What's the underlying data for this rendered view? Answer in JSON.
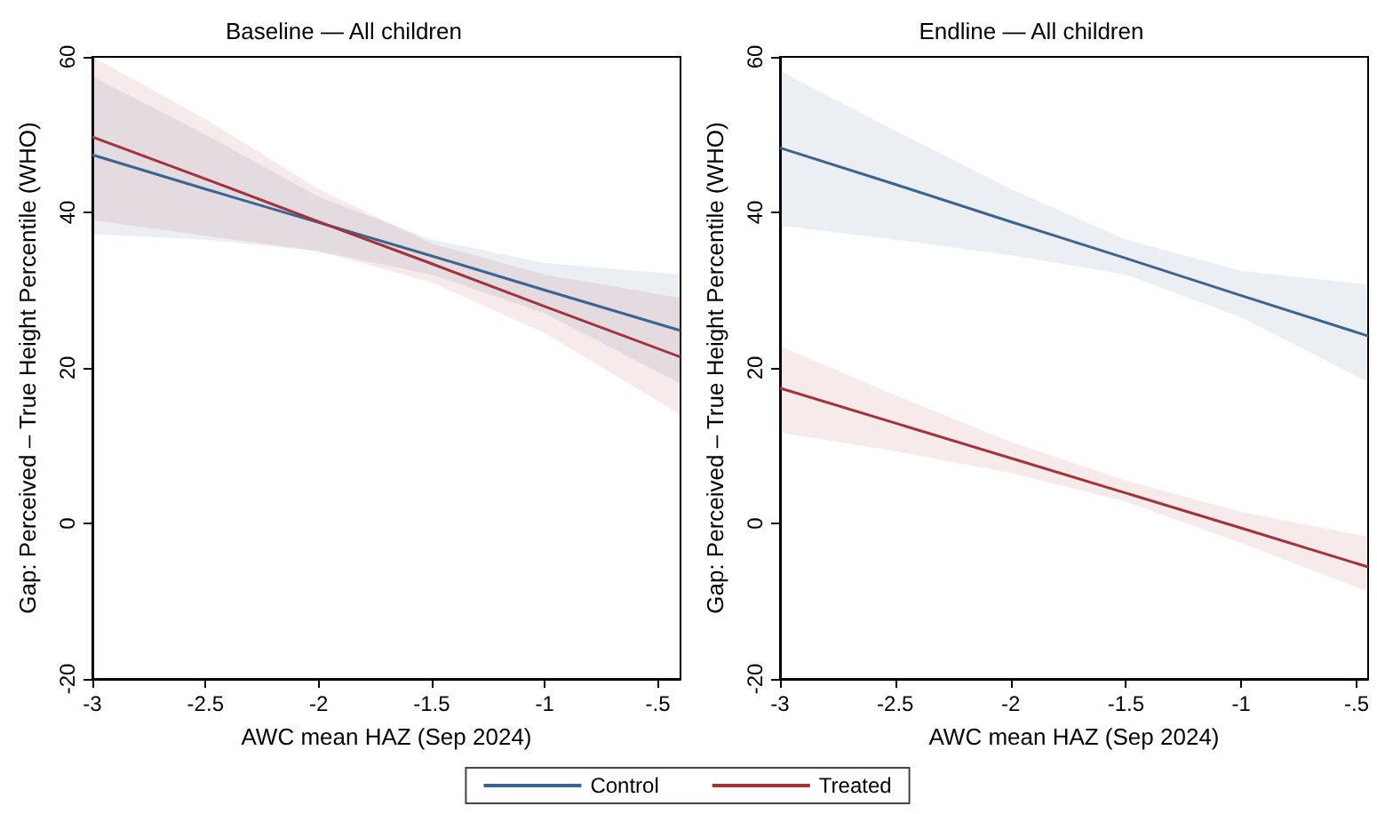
{
  "chart_data": [
    {
      "type": "line",
      "title": "Baseline — All children",
      "xlabel": "AWC mean HAZ (Sep 2024)",
      "ylabel": "Gap: Perceived – True Height Percentile (WHO)",
      "x": [
        -3,
        -2.5,
        -2,
        -1.5,
        -1,
        -0.4
      ],
      "xlim": [
        -3,
        -0.4
      ],
      "xticks": [
        -3,
        -2.5,
        -2,
        -1.5,
        -1,
        {
          "value": -0.5,
          "label": "-.5"
        }
      ],
      "ylim": [
        -20,
        60
      ],
      "yticks": [
        -20,
        0,
        20,
        40,
        60
      ],
      "grid": false,
      "legend": "bottom",
      "series": [
        {
          "name": "Control",
          "color": "#3b6590",
          "values": [
            47.4,
            43.0,
            38.7,
            34.4,
            30.0,
            24.8
          ],
          "lower": [
            37.2,
            36.5,
            35,
            32,
            27,
            18
          ],
          "upper": [
            57.5,
            50,
            42,
            36.5,
            33.5,
            32
          ]
        },
        {
          "name": "Treated",
          "color": "#a3323c",
          "values": [
            49.7,
            44.3,
            38.8,
            33.4,
            27.9,
            21.4
          ],
          "lower": [
            39,
            37,
            35,
            31,
            24.5,
            14
          ],
          "upper": [
            60,
            52,
            43,
            36,
            32,
            29
          ]
        }
      ]
    },
    {
      "type": "line",
      "title": "Endline — All children",
      "xlabel": "AWC mean HAZ (Sep 2024)",
      "ylabel": "Gap: Perceived – True Height Percentile (WHO)",
      "x": [
        -3,
        -2.5,
        -2,
        -1.5,
        -1,
        -0.45
      ],
      "xlim": [
        -3,
        -0.45
      ],
      "xticks": [
        -3,
        -2.5,
        -2,
        -1.5,
        -1,
        {
          "value": -0.5,
          "label": "-.5"
        }
      ],
      "ylim": [
        -20,
        60
      ],
      "yticks": [
        -20,
        0,
        20,
        40,
        60
      ],
      "grid": false,
      "legend": "bottom",
      "series": [
        {
          "name": "Control",
          "color": "#3b6590",
          "values": [
            48.3,
            43.6,
            38.8,
            34.1,
            29.3,
            24.1
          ],
          "lower": [
            38.3,
            36.5,
            34.5,
            32,
            26.5,
            18.2
          ],
          "upper": [
            58.2,
            50.5,
            43,
            36.5,
            32.5,
            30.7
          ]
        },
        {
          "name": "Treated",
          "color": "#a3323c",
          "values": [
            17.4,
            12.9,
            8.4,
            3.9,
            -0.6,
            -5.6
          ],
          "lower": [
            11.7,
            9.3,
            6.5,
            2.8,
            -2.5,
            -8.8
          ],
          "upper": [
            22.8,
            16.5,
            10.5,
            5.5,
            1.5,
            -1.7
          ]
        }
      ]
    }
  ]
}
